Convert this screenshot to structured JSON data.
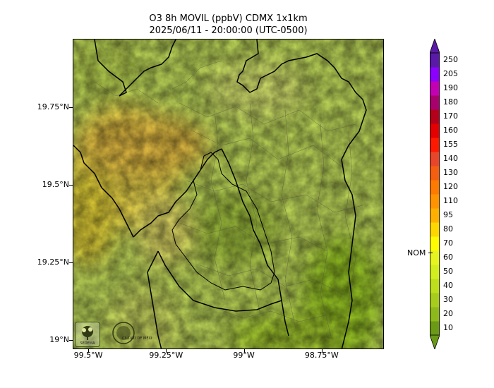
{
  "title": {
    "line1": "O3 8h MOVIL (ppbV) CDMX 1x1km",
    "line2": "2025/06/11 - 20:00:00 (UTC-0500)"
  },
  "axes": {
    "lon_ticks": [
      {
        "label": "99.5°W",
        "value": -99.5
      },
      {
        "label": "99.25°W",
        "value": -99.25
      },
      {
        "label": "99°W",
        "value": -99.0
      },
      {
        "label": "98.75°W",
        "value": -98.75
      }
    ],
    "lat_ticks": [
      {
        "label": "19.75°N",
        "value": 19.75
      },
      {
        "label": "19.5°N",
        "value": 19.5
      },
      {
        "label": "19.25°N",
        "value": 19.25
      },
      {
        "label": "19°N",
        "value": 19.0
      }
    ],
    "lon_range": [
      -99.55,
      -98.55
    ],
    "lat_range": [
      18.97,
      19.97
    ]
  },
  "colorbar": {
    "levels": [
      "10",
      "20",
      "30",
      "40",
      "50",
      "60",
      "70",
      "80",
      "95",
      "110",
      "120",
      "130",
      "140",
      "155",
      "160",
      "170",
      "180",
      "190",
      "205",
      "250"
    ],
    "colors": [
      "#6b9a16",
      "#8eb91c",
      "#a7cc1d",
      "#bcde1d",
      "#d3ee1e",
      "#e6f51f",
      "#fffb00",
      "#ffd700",
      "#ffb000",
      "#ff9400",
      "#ff7a00",
      "#f45e10",
      "#e8462a",
      "#ff1900",
      "#e40000",
      "#b5001c",
      "#a8006d",
      "#c400b3",
      "#8b00ff",
      "#5a1aa8"
    ],
    "extend_low_color": "#6b9a16",
    "extend_high_color": "#5a1aa8",
    "nom_label": "NOM",
    "nom_value": 70
  },
  "logos": {
    "sedema": "SEDEMA",
    "cdmx": "CIUDAD DE MÉXICO"
  }
}
